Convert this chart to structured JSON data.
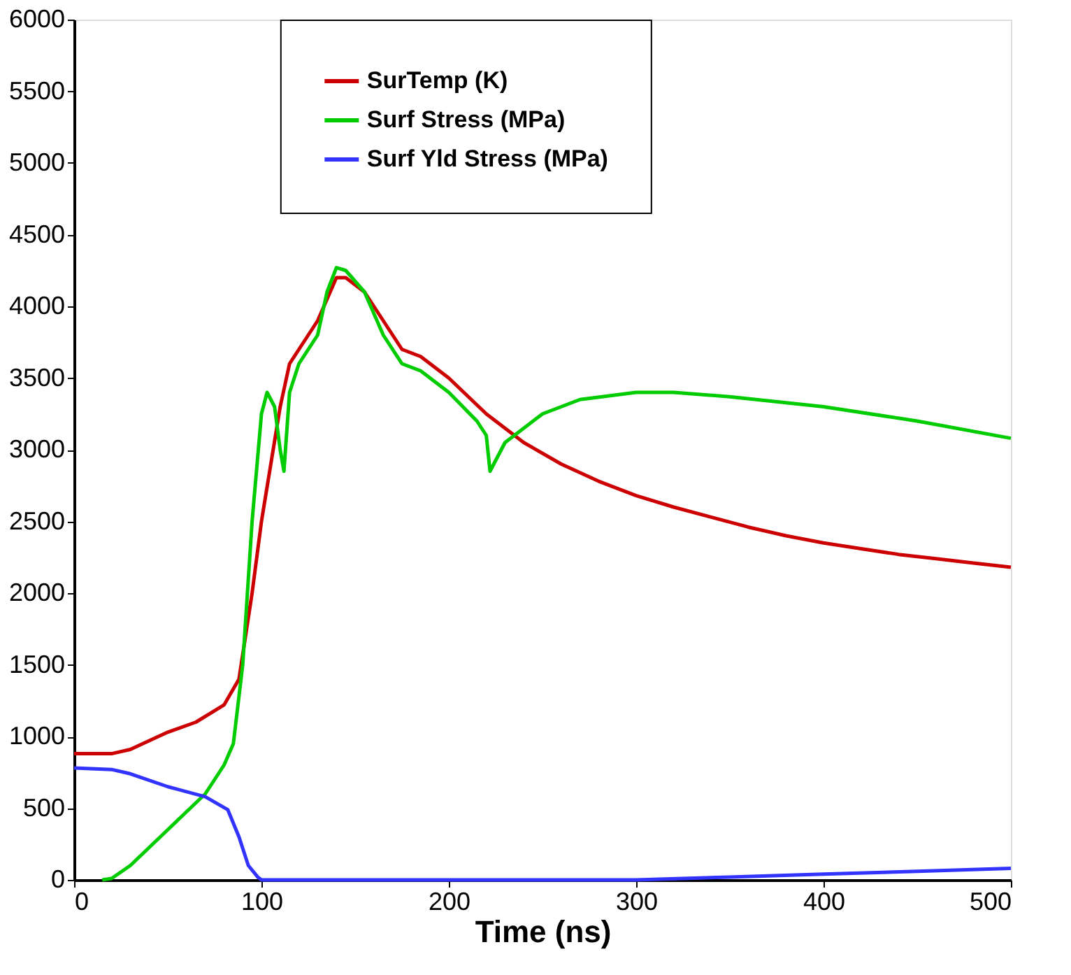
{
  "chart_data": {
    "type": "line",
    "xlabel": "Time (ns)",
    "xlim": [
      0,
      500
    ],
    "xticks": [
      0,
      100,
      200,
      300,
      400,
      500
    ],
    "ylim": [
      0,
      6000
    ],
    "yticks": [
      0,
      500,
      1000,
      1500,
      2000,
      2500,
      3000,
      3500,
      4000,
      4500,
      5000,
      5500,
      6000
    ],
    "grid": false,
    "legend": "top",
    "marker": "none",
    "line_style": "solid",
    "series": [
      {
        "name": "SurTemp (K)",
        "color": "#cc0000",
        "x": [
          0,
          20,
          30,
          50,
          65,
          80,
          88,
          95,
          100,
          105,
          110,
          115,
          120,
          130,
          140,
          145,
          155,
          165,
          175,
          185,
          200,
          220,
          240,
          260,
          280,
          300,
          320,
          340,
          360,
          380,
          400,
          420,
          440,
          460,
          480,
          500
        ],
        "values": [
          880,
          880,
          910,
          1030,
          1100,
          1220,
          1400,
          2000,
          2500,
          2900,
          3300,
          3600,
          3700,
          3900,
          4200,
          4200,
          4100,
          3900,
          3700,
          3650,
          3500,
          3250,
          3050,
          2900,
          2780,
          2680,
          2600,
          2530,
          2460,
          2400,
          2350,
          2310,
          2270,
          2240,
          2210,
          2180
        ]
      },
      {
        "name": "Surf Stress (MPa)",
        "color": "#00cc00",
        "x": [
          15,
          20,
          30,
          50,
          70,
          80,
          85,
          90,
          95,
          100,
          103,
          107,
          110,
          112,
          115,
          120,
          130,
          135,
          140,
          145,
          155,
          165,
          175,
          185,
          200,
          215,
          220,
          222,
          230,
          250,
          270,
          300,
          320,
          350,
          400,
          450,
          500
        ],
        "values": [
          0,
          10,
          100,
          350,
          600,
          800,
          950,
          1500,
          2500,
          3250,
          3400,
          3300,
          3000,
          2850,
          3400,
          3600,
          3800,
          4100,
          4270,
          4250,
          4100,
          3800,
          3600,
          3550,
          3400,
          3200,
          3100,
          2850,
          3050,
          3250,
          3350,
          3400,
          3400,
          3370,
          3300,
          3200,
          3080
        ]
      },
      {
        "name": "Surf Yld Stress (MPa)",
        "color": "#3333ff",
        "x": [
          0,
          20,
          30,
          50,
          70,
          82,
          88,
          93,
          98,
          100,
          120,
          300,
          350,
          400,
          450,
          500
        ],
        "values": [
          780,
          770,
          740,
          650,
          580,
          490,
          300,
          100,
          20,
          0,
          0,
          0,
          20,
          40,
          60,
          80
        ]
      }
    ]
  }
}
